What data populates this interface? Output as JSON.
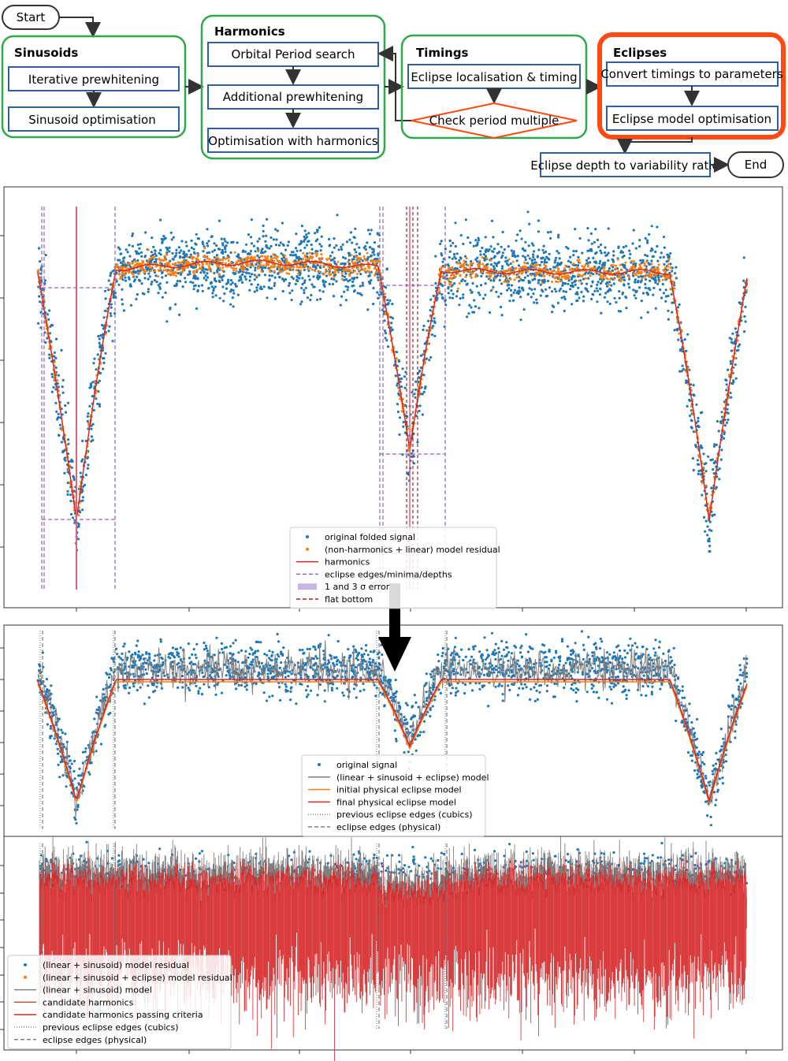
{
  "flowchart": {
    "start": "Start",
    "end": "End",
    "groups": {
      "sinusoids": {
        "title": "Sinusoids",
        "steps": [
          "Iterative prewhitening",
          "Sinusoid optimisation"
        ]
      },
      "harmonics": {
        "title": "Harmonics",
        "steps": [
          "Orbital Period search",
          "Additional prewhitening",
          "Optimisation with harmonics"
        ]
      },
      "timings": {
        "title": "Timings",
        "steps": [
          "Eclipse localisation & timing"
        ],
        "decision": "Check period multiple"
      },
      "eclipses": {
        "title": "Eclipses",
        "steps": [
          "Convert timings to parameters",
          "Eclipse model optimisation"
        ]
      }
    },
    "final_step": "Eclipse depth to variability ratio"
  },
  "colors": {
    "group_border": "#2fa84a",
    "highlight_border": "#ff4a12",
    "box_border": "#2f5f9e",
    "signal": "#1f77b4",
    "residual": "#ff7f0e",
    "model_red": "#d62728",
    "edges": "#9467bd",
    "gray": "#808080"
  },
  "panels": [
    {
      "legend": [
        {
          "label": "original folded signal",
          "style": "dot",
          "color": "#1f77b4"
        },
        {
          "label": "(non-harmonics + linear) model residual",
          "style": "dot",
          "color": "#ff7f0e"
        },
        {
          "label": "harmonics",
          "style": "line",
          "color": "#d62728"
        },
        {
          "label": "eclipse edges/minima/depths",
          "style": "dash",
          "color": "#9467bd"
        },
        {
          "label": "1 and 3 σ error",
          "style": "patch",
          "color": "#c9b6e4"
        },
        {
          "label": "flat bottom",
          "style": "dash",
          "color": "#8c2d2d"
        }
      ]
    },
    {
      "legend": [
        {
          "label": "original signal",
          "style": "dot",
          "color": "#1f77b4"
        },
        {
          "label": "(linear + sinusoid + eclipse) model",
          "style": "line",
          "color": "#808080"
        },
        {
          "label": "initial physical eclipse model",
          "style": "line",
          "color": "#ff7f0e"
        },
        {
          "label": "final physical eclipse model",
          "style": "line",
          "color": "#d62728"
        },
        {
          "label": "previous eclipse edges (cubics)",
          "style": "dot-line",
          "color": "#808080"
        },
        {
          "label": "eclipse edges (physical)",
          "style": "dash",
          "color": "#808080"
        }
      ]
    },
    {
      "legend": [
        {
          "label": "(linear + sinusoid) model residual",
          "style": "dot",
          "color": "#1f77b4"
        },
        {
          "label": "(linear + sinusoid + eclipse) model residual",
          "style": "dot",
          "color": "#ff7f0e"
        },
        {
          "label": "(linear + sinusoid) model",
          "style": "line",
          "color": "#808080"
        },
        {
          "label": "candidate harmonics",
          "style": "line",
          "color": "#b5543c"
        },
        {
          "label": "candidate harmonics passing criteria",
          "style": "line",
          "color": "#d62728"
        },
        {
          "label": "previous eclipse edges (cubics)",
          "style": "dot-line",
          "color": "#808080"
        },
        {
          "label": "eclipse edges (physical)",
          "style": "dash",
          "color": "#808080"
        }
      ]
    }
  ]
}
